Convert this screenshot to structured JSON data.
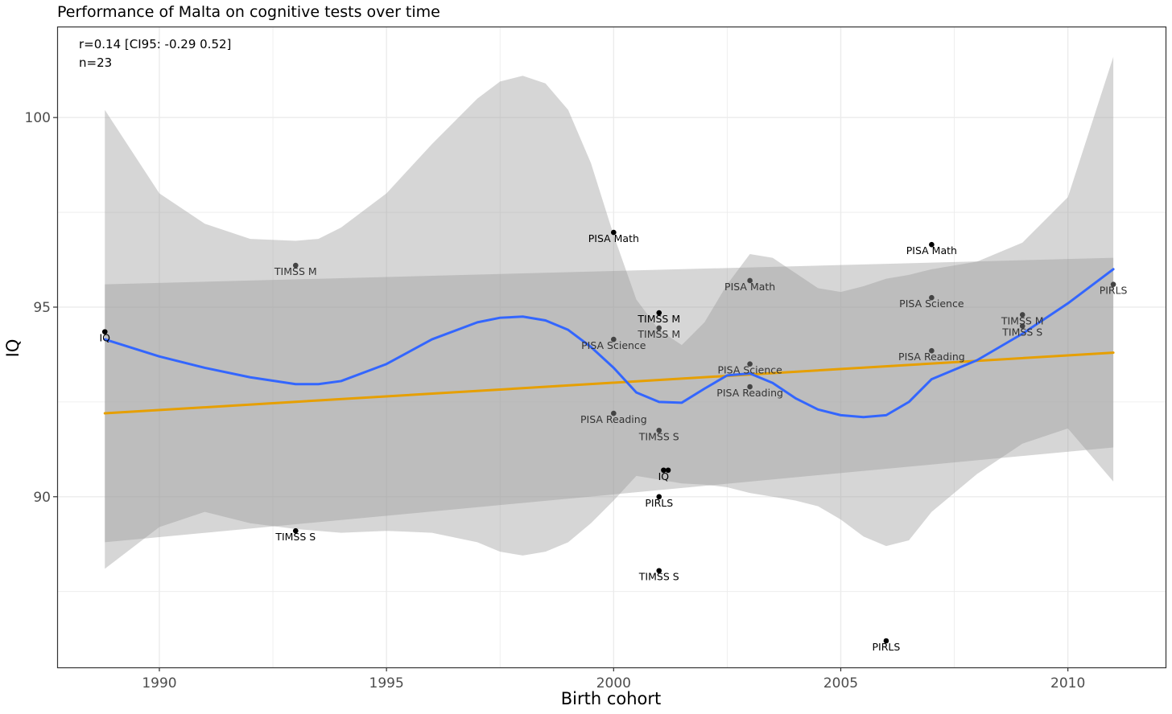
{
  "chart_data": {
    "type": "scatter",
    "title": "Performance of Malta on cognitive tests over time",
    "xlabel": "Birth cohort",
    "ylabel": "IQ",
    "xlim": [
      1987.75,
      2012.15
    ],
    "ylim": [
      85.5,
      102.4
    ],
    "x_ticks": [
      1990,
      1995,
      2000,
      2005,
      2010
    ],
    "y_ticks": [
      90,
      95,
      100
    ],
    "grid": true,
    "annotations": [
      "r=0.14 [CI95: -0.29 0.52]",
      "n=23"
    ],
    "colors": {
      "smooth_line": "#3366ff",
      "linear_fit": "#e69f00",
      "ribbon": "#999999",
      "points": "#000000",
      "panel_border": "#333333",
      "grid": "#ebebeb"
    },
    "points": [
      {
        "x": 1988.8,
        "y": 94.35,
        "label": "IQ",
        "shade": 0
      },
      {
        "x": 1993.0,
        "y": 96.1,
        "label": "TIMSS M",
        "shade": 1
      },
      {
        "x": 1993.0,
        "y": 89.1,
        "label": "TIMSS S",
        "shade": 0
      },
      {
        "x": 2000.0,
        "y": 96.97,
        "label": "PISA Math",
        "shade": 0
      },
      {
        "x": 2000.0,
        "y": 94.15,
        "label": "PISA Science",
        "shade": 1
      },
      {
        "x": 2000.0,
        "y": 92.2,
        "label": "PISA Reading",
        "shade": 1
      },
      {
        "x": 2001.0,
        "y": 94.85,
        "label": "TIMSS M",
        "shade": 0
      },
      {
        "x": 2001.0,
        "y": 94.45,
        "label": "TIMSS M",
        "shade": 1
      },
      {
        "x": 2001.0,
        "y": 91.75,
        "label": "TIMSS S",
        "shade": 1
      },
      {
        "x": 2001.1,
        "y": 90.7,
        "label": "IQ",
        "shade": 0
      },
      {
        "x": 2001.2,
        "y": 90.7,
        "label": "",
        "shade": 0
      },
      {
        "x": 2001.0,
        "y": 90.0,
        "label": "PIRLS",
        "shade": 0
      },
      {
        "x": 2001.0,
        "y": 88.05,
        "label": "TIMSS S",
        "shade": 0
      },
      {
        "x": 2003.0,
        "y": 95.7,
        "label": "PISA Math",
        "shade": 1
      },
      {
        "x": 2003.0,
        "y": 93.5,
        "label": "PISA Science",
        "shade": 1
      },
      {
        "x": 2003.0,
        "y": 92.9,
        "label": "PISA Reading",
        "shade": 1
      },
      {
        "x": 2006.0,
        "y": 86.2,
        "label": "PIRLS",
        "shade": 0
      },
      {
        "x": 2007.0,
        "y": 96.65,
        "label": "PISA Math",
        "shade": 0
      },
      {
        "x": 2007.0,
        "y": 95.25,
        "label": "PISA Science",
        "shade": 1
      },
      {
        "x": 2007.0,
        "y": 93.85,
        "label": "PISA Reading",
        "shade": 1
      },
      {
        "x": 2009.0,
        "y": 94.8,
        "label": "TIMSS M",
        "shade": 1
      },
      {
        "x": 2009.0,
        "y": 94.5,
        "label": "TIMSS S",
        "shade": 1
      },
      {
        "x": 2011.0,
        "y": 95.6,
        "label": "PIRLS",
        "shade": 1
      }
    ],
    "linear_fit": {
      "x": [
        1988.8,
        2011.0
      ],
      "y": [
        92.2,
        93.8
      ],
      "ci_upper": [
        95.6,
        96.3
      ],
      "ci_lower": [
        88.8,
        91.3
      ]
    },
    "smooth": {
      "x": [
        1988.8,
        1990,
        1991,
        1992,
        1993,
        1993.5,
        1994,
        1995,
        1996,
        1997,
        1997.5,
        1998,
        1998.5,
        1999,
        1999.5,
        2000,
        2000.5,
        2001,
        2001.5,
        2002,
        2002.5,
        2003,
        2003.5,
        2004,
        2004.5,
        2005,
        2005.5,
        2006,
        2006.5,
        2007,
        2008,
        2009,
        2010,
        2011
      ],
      "y": [
        94.15,
        93.7,
        93.4,
        93.15,
        92.97,
        92.97,
        93.05,
        93.5,
        94.15,
        94.6,
        94.72,
        94.75,
        94.65,
        94.4,
        93.95,
        93.4,
        92.75,
        92.5,
        92.48,
        92.85,
        93.2,
        93.25,
        93.0,
        92.6,
        92.3,
        92.15,
        92.1,
        92.15,
        92.5,
        93.1,
        93.6,
        94.3,
        95.1,
        96.0
      ],
      "ci_upper": [
        100.2,
        98.0,
        97.2,
        96.8,
        96.75,
        96.8,
        97.1,
        98.0,
        99.3,
        100.5,
        100.95,
        101.1,
        100.9,
        100.2,
        98.8,
        96.9,
        95.2,
        94.4,
        94.0,
        94.6,
        95.6,
        96.4,
        96.3,
        95.9,
        95.5,
        95.4,
        95.55,
        95.75,
        95.85,
        96.0,
        96.2,
        96.7,
        97.9,
        101.6
      ],
      "ci_lower": [
        88.1,
        89.2,
        89.6,
        89.3,
        89.15,
        89.1,
        89.05,
        89.1,
        89.05,
        88.8,
        88.55,
        88.45,
        88.55,
        88.8,
        89.3,
        89.9,
        90.55,
        90.45,
        90.35,
        90.32,
        90.25,
        90.1,
        90.0,
        89.9,
        89.75,
        89.4,
        88.95,
        88.7,
        88.85,
        89.6,
        90.6,
        91.4,
        91.8,
        90.4
      ]
    }
  }
}
